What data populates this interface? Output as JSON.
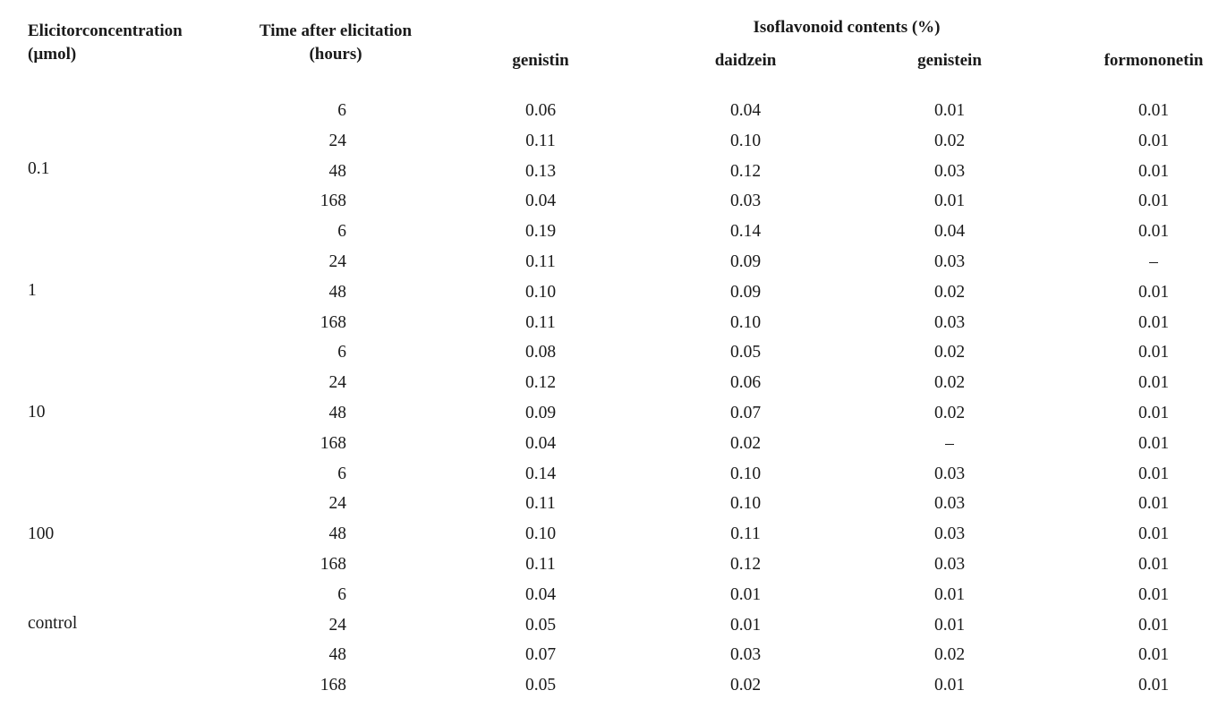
{
  "table": {
    "headers": {
      "elicitor_line1": "Elicitorconcentration",
      "elicitor_line2": "(µmol)",
      "time_line1": "Time after elicitation",
      "time_line2": "(hours)",
      "group_title": "Isoflavonoid contents (%)",
      "columns": [
        "genistin",
        "daidzein",
        "genistein",
        "formononetin"
      ]
    },
    "groups": [
      {
        "label": "0.1"
      },
      {
        "label": "1"
      },
      {
        "label": "10"
      },
      {
        "label": "100"
      },
      {
        "label": "control"
      }
    ],
    "rows": [
      {
        "time": "6",
        "values": [
          "0.06",
          "0.04",
          "0.01",
          "0.01"
        ]
      },
      {
        "time": "24",
        "values": [
          "0.11",
          "0.10",
          "0.02",
          "0.01"
        ]
      },
      {
        "time": "48",
        "values": [
          "0.13",
          "0.12",
          "0.03",
          "0.01"
        ]
      },
      {
        "time": "168",
        "values": [
          "0.04",
          "0.03",
          "0.01",
          "0.01"
        ]
      },
      {
        "time": "6",
        "values": [
          "0.19",
          "0.14",
          "0.04",
          "0.01"
        ]
      },
      {
        "time": "24",
        "values": [
          "0.11",
          "0.09",
          "0.03",
          "–"
        ]
      },
      {
        "time": "48",
        "values": [
          "0.10",
          "0.09",
          "0.02",
          "0.01"
        ]
      },
      {
        "time": "168",
        "values": [
          "0.11",
          "0.10",
          "0.03",
          "0.01"
        ]
      },
      {
        "time": "6",
        "values": [
          "0.08",
          "0.05",
          "0.02",
          "0.01"
        ]
      },
      {
        "time": "24",
        "values": [
          "0.12",
          "0.06",
          "0.02",
          "0.01"
        ]
      },
      {
        "time": "48",
        "values": [
          "0.09",
          "0.07",
          "0.02",
          "0.01"
        ]
      },
      {
        "time": "168",
        "values": [
          "0.04",
          "0.02",
          "–",
          "0.01"
        ]
      },
      {
        "time": "6",
        "values": [
          "0.14",
          "0.10",
          "0.03",
          "0.01"
        ]
      },
      {
        "time": "24",
        "values": [
          "0.11",
          "0.10",
          "0.03",
          "0.01"
        ]
      },
      {
        "time": "48",
        "values": [
          "0.10",
          "0.11",
          "0.03",
          "0.01"
        ]
      },
      {
        "time": "168",
        "values": [
          "0.11",
          "0.12",
          "0.03",
          "0.01"
        ]
      },
      {
        "time": "6",
        "values": [
          "0.04",
          "0.01",
          "0.01",
          "0.01"
        ]
      },
      {
        "time": "24",
        "values": [
          "0.05",
          "0.01",
          "0.01",
          "0.01"
        ]
      },
      {
        "time": "48",
        "values": [
          "0.07",
          "0.03",
          "0.02",
          "0.01"
        ]
      },
      {
        "time": "168",
        "values": [
          "0.05",
          "0.02",
          "0.01",
          "0.01"
        ]
      }
    ]
  }
}
